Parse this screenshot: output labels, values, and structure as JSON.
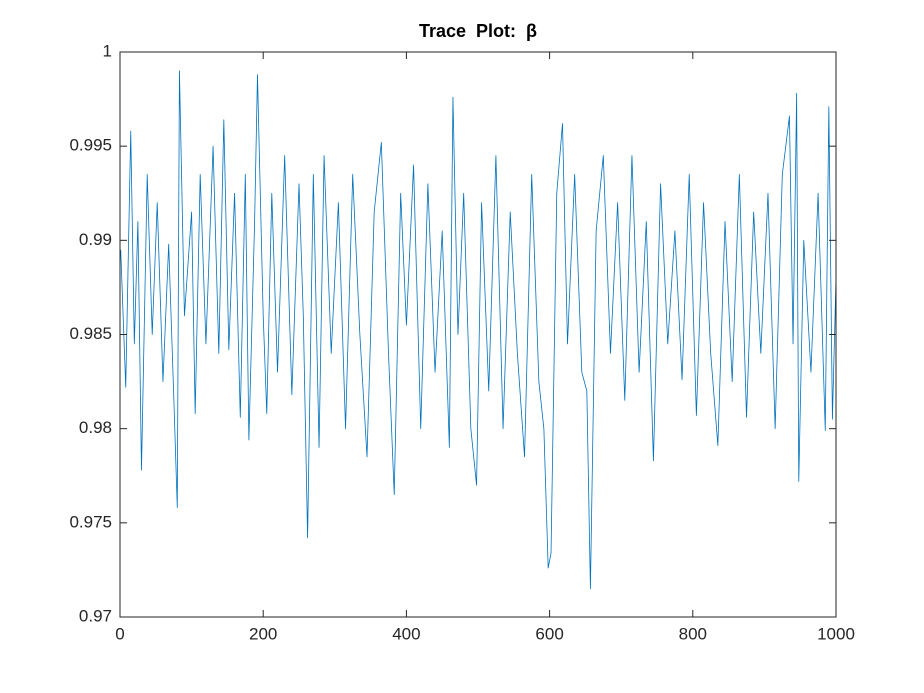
{
  "chart_data": {
    "type": "line",
    "title": "Trace  Plot:  β",
    "x": [
      1,
      8,
      15,
      20,
      25,
      30,
      38,
      45,
      52,
      60,
      68,
      75,
      80,
      83,
      90,
      100,
      105,
      112,
      120,
      130,
      138,
      145,
      152,
      160,
      168,
      175,
      180,
      188,
      192,
      200,
      205,
      212,
      220,
      230,
      240,
      250,
      256,
      262,
      270,
      278,
      285,
      295,
      305,
      315,
      325,
      335,
      345,
      355,
      365,
      375,
      383,
      392,
      400,
      410,
      420,
      430,
      440,
      450,
      460,
      465,
      472,
      480,
      490,
      498,
      505,
      515,
      525,
      535,
      545,
      555,
      565,
      575,
      585,
      592,
      598,
      602,
      610,
      618,
      625,
      635,
      645,
      652,
      657,
      665,
      675,
      685,
      695,
      705,
      715,
      725,
      735,
      745,
      755,
      765,
      775,
      785,
      795,
      805,
      815,
      825,
      835,
      845,
      855,
      865,
      875,
      885,
      895,
      905,
      915,
      925,
      935,
      940,
      945,
      948,
      955,
      965,
      975,
      985,
      990,
      995,
      1000
    ],
    "series": [
      {
        "color": "#0072bd",
        "values": [
          0.9895,
          0.9822,
          0.9958,
          0.9845,
          0.991,
          0.9778,
          0.9935,
          0.985,
          0.992,
          0.9825,
          0.9898,
          0.9818,
          0.9758,
          0.999,
          0.986,
          0.9915,
          0.9808,
          0.9935,
          0.9845,
          0.995,
          0.984,
          0.9964,
          0.9842,
          0.9925,
          0.9806,
          0.9935,
          0.9794,
          0.991,
          0.9988,
          0.986,
          0.9808,
          0.9925,
          0.983,
          0.9945,
          0.9818,
          0.993,
          0.986,
          0.9742,
          0.9935,
          0.979,
          0.9945,
          0.984,
          0.992,
          0.98,
          0.9935,
          0.985,
          0.9785,
          0.9915,
          0.9952,
          0.984,
          0.9765,
          0.9925,
          0.9855,
          0.994,
          0.98,
          0.993,
          0.983,
          0.9905,
          0.979,
          0.9976,
          0.985,
          0.9925,
          0.98,
          0.977,
          0.992,
          0.982,
          0.9945,
          0.98,
          0.9915,
          0.984,
          0.9785,
          0.9935,
          0.9825,
          0.98,
          0.9726,
          0.9734,
          0.9925,
          0.9962,
          0.9845,
          0.9935,
          0.983,
          0.982,
          0.9715,
          0.9905,
          0.9945,
          0.984,
          0.992,
          0.9815,
          0.9945,
          0.983,
          0.991,
          0.9783,
          0.993,
          0.9845,
          0.9905,
          0.9826,
          0.9935,
          0.9807,
          0.992,
          0.984,
          0.9791,
          0.991,
          0.9825,
          0.9935,
          0.9806,
          0.9915,
          0.984,
          0.9925,
          0.98,
          0.9935,
          0.9966,
          0.9845,
          0.9978,
          0.9772,
          0.99,
          0.983,
          0.9925,
          0.9799,
          0.9971,
          0.9805,
          0.988
        ]
      }
    ],
    "xlim": [
      0,
      1000
    ],
    "xticks": [
      0,
      200,
      400,
      600,
      800,
      1000
    ],
    "ylim": [
      0.97,
      1
    ],
    "yticks": [
      0.97,
      0.975,
      0.98,
      0.985,
      0.99,
      0.995,
      1
    ],
    "grid": false
  }
}
